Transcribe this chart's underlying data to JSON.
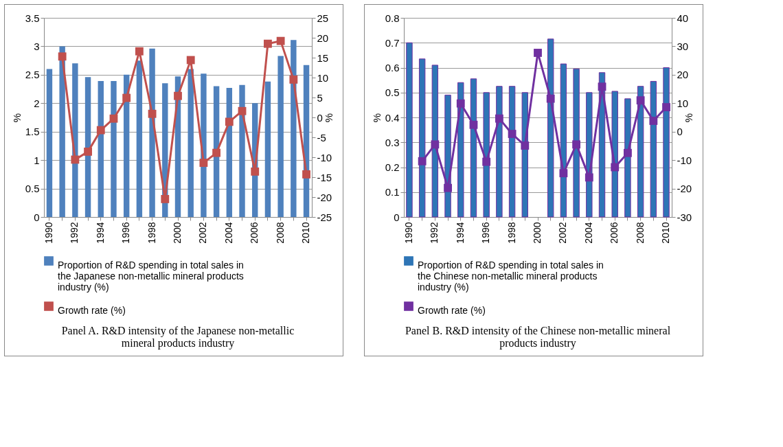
{
  "chart_data": [
    {
      "type": "bar",
      "title": "Panel A. R&D intensity of the Japanese non-metallic mineral products industry",
      "categories": [
        "1990",
        null,
        "1992",
        null,
        "1994",
        null,
        "1996",
        null,
        "1998",
        null,
        "2000",
        null,
        "2002",
        null,
        "2004",
        null,
        "2006",
        null,
        "2008",
        null,
        "2010"
      ],
      "series": [
        {
          "name": "Proportion of R&D spending in total sales in the Japanese non-metallic mineral products industry (%)",
          "color": "#4f81bd",
          "values": [
            2.6,
            3.0,
            2.7,
            2.46,
            2.39,
            2.39,
            2.5,
            2.75,
            2.96,
            2.35,
            2.47,
            2.6,
            2.52,
            2.3,
            2.27,
            2.32,
            2.0,
            2.38,
            2.83,
            3.11,
            2.67
          ]
        },
        {
          "type": "line",
          "axis": "y2",
          "name": "Growth rate (%)",
          "color": "#c0504d",
          "values": [
            null,
            15.3,
            -10.6,
            -8.6,
            -3.2,
            -0.3,
            4.9,
            16.6,
            0.9,
            -20.5,
            5.4,
            14.4,
            -11.4,
            -8.9,
            -1.1,
            1.6,
            -13.6,
            18.5,
            19.2,
            9.5,
            -14.3
          ]
        }
      ],
      "ylabel": "%",
      "y2label": "%",
      "ylim": [
        0,
        3.5
      ],
      "yticks": [
        0,
        0.5,
        1,
        1.5,
        2,
        2.5,
        3,
        3.5
      ],
      "y2lim": [
        -25,
        25
      ],
      "y2ticks": [
        -25,
        -20,
        -15,
        -10,
        -5,
        0,
        5,
        10,
        15,
        20,
        25
      ],
      "grid": "y",
      "legend": "bottom",
      "marker": "square"
    },
    {
      "type": "bar",
      "title": "Panel B. R&D intensity of the Chinese non-metallic mineral products industry",
      "categories": [
        "1990",
        null,
        "1992",
        null,
        "1994",
        null,
        "1996",
        null,
        "1998",
        null,
        "2000",
        null,
        "2002",
        null,
        "2004",
        null,
        "2006",
        null,
        "2008",
        null,
        "2010"
      ],
      "series": [
        {
          "name": "Proportion of R&D spending in total sales in the Chinese non-metallic mineral products industry (%)",
          "color": "#2e75b6",
          "values": [
            0.7,
            0.635,
            0.61,
            0.49,
            0.54,
            0.555,
            0.5,
            0.525,
            0.525,
            0.5,
            null,
            0.715,
            0.615,
            0.595,
            0.5,
            0.58,
            0.505,
            0.475,
            0.525,
            0.545,
            0.6
          ]
        },
        {
          "type": "line",
          "axis": "y2",
          "name": "Growth rate (%)",
          "color": "#7030a0",
          "values": [
            null,
            -10.4,
            -4.5,
            -19.8,
            9.9,
            2.4,
            -10.6,
            4.6,
            -0.8,
            -4.9,
            27.7,
            11.6,
            -14.6,
            -4.5,
            -16.1,
            15.8,
            -12.5,
            -7.5,
            11.0,
            3.8,
            8.6
          ]
        }
      ],
      "ylabel": "%",
      "y2label": "%",
      "ylim": [
        0,
        0.8
      ],
      "yticks": [
        0,
        0.1,
        0.2,
        0.3,
        0.4,
        0.5,
        0.6,
        0.7,
        0.8
      ],
      "y2lim": [
        -30,
        40
      ],
      "y2ticks": [
        -30,
        -20,
        -10,
        0,
        10,
        20,
        30,
        40
      ],
      "grid": "y",
      "legend": "bottom",
      "marker": "square"
    }
  ]
}
